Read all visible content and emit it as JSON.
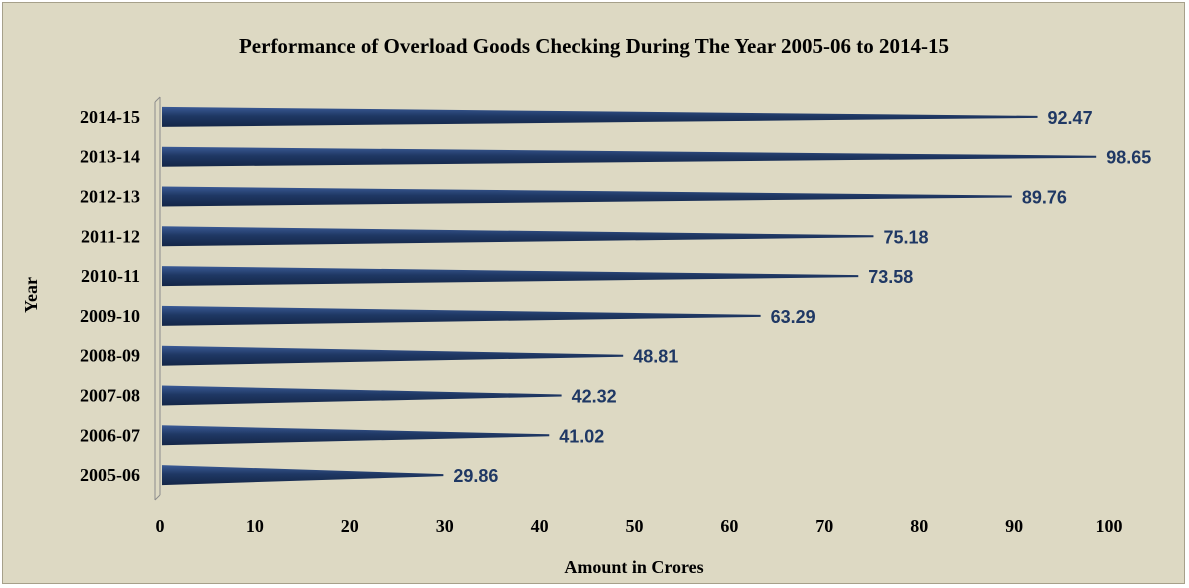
{
  "chart_data": {
    "type": "bar",
    "orientation": "horizontal",
    "title": "Performance of Overload Goods Checking During The Year 2005-06 to 2014-15",
    "xlabel": "Amount  in Crores",
    "ylabel": "Year",
    "categories": [
      "2005-06",
      "2006-07",
      "2007-08",
      "2008-09",
      "2009-10",
      "2010-11",
      "2011-12",
      "2012-13",
      "2013-14",
      "2014-15"
    ],
    "values": [
      29.86,
      41.02,
      42.32,
      48.81,
      63.29,
      73.58,
      75.18,
      89.76,
      98.65,
      92.47
    ],
    "data_labels": [
      "29.86",
      "41.02",
      "42.32",
      "48.81",
      "63.29",
      "73.58",
      "75.18",
      "89.76",
      "98.65",
      "92.47"
    ],
    "xlim": [
      0,
      100
    ],
    "xticks": [
      "0",
      "10",
      "20",
      "30",
      "40",
      "50",
      "60",
      "70",
      "80",
      "90",
      "100"
    ],
    "grid": false,
    "legend": "none",
    "colors": {
      "bar": "#1f3864",
      "bar_highlight": "#3a5a96",
      "background": "#ddd9c3",
      "label": "#1f3864"
    }
  }
}
